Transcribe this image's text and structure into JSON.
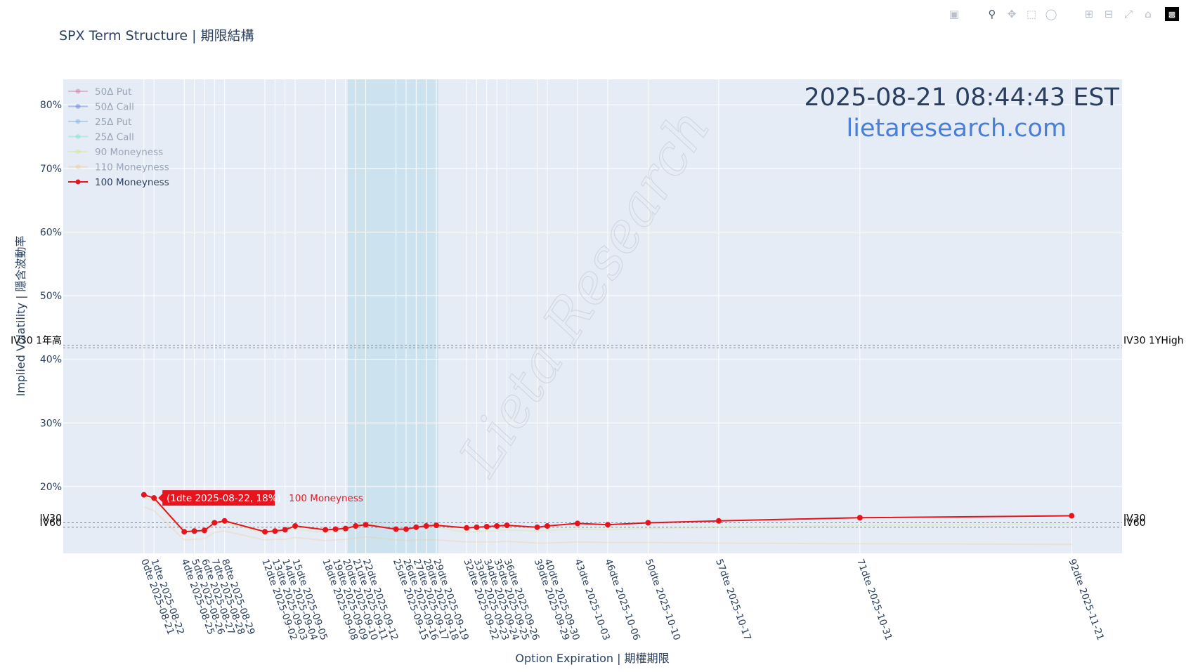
{
  "title": "SPX Term Structure | 期限結構",
  "timestamp": "2025-08-21 08:44:43 EST",
  "website": "lietaresearch.com",
  "watermark": "Lieta Research",
  "toolbar": [
    "camera-icon",
    "zoom-icon",
    "pan-icon",
    "box-select-icon",
    "lasso-icon",
    "zoom-in-icon",
    "zoom-out-icon",
    "autoscale-icon",
    "home-icon",
    "plotly-logo-icon"
  ],
  "hover_label": "(1dte 2025-08-22, 18%)",
  "hover_series": "100 Moneyness",
  "colors": {
    "plot_bg": "#e5ecf6",
    "shade": "#add8e6",
    "main_line": "#e8141d",
    "title": "#2a3f5f",
    "site": "#4a7fd6"
  },
  "chart_data": {
    "type": "line",
    "title": "SPX Term Structure | 期限結構",
    "xlabel": "Option Expiration | 期權期限",
    "ylabel": "Implied Volatility | 隱含波動率",
    "ylim": [
      9.5,
      84
    ],
    "yticks": [
      20,
      30,
      40,
      50,
      60,
      70,
      80
    ],
    "ytick_labels": [
      "20%",
      "30%",
      "40%",
      "50%",
      "60%",
      "70%",
      "80%"
    ],
    "xlim": [
      -8,
      97
    ],
    "dte": [
      0,
      1,
      4,
      5,
      6,
      7,
      8,
      12,
      13,
      14,
      15,
      18,
      19,
      20,
      21,
      22,
      25,
      26,
      27,
      28,
      29,
      32,
      33,
      34,
      35,
      36,
      39,
      40,
      43,
      46,
      50,
      57,
      71,
      92
    ],
    "x_labels": [
      "0dte 2025-08-21",
      "1dte 2025-08-22",
      "4dte 2025-08-25",
      "5dte 2025-08-26",
      "6dte 2025-08-27",
      "7dte 2025-08-28",
      "8dte 2025-08-29",
      "12dte 2025-09-02",
      "13dte 2025-09-03",
      "14dte 2025-09-04",
      "15dte 2025-09-05",
      "18dte 2025-09-08",
      "19dte 2025-09-09",
      "20dte 2025-09-10",
      "21dte 2025-09-11",
      "22dte 2025-09-12",
      "25dte 2025-09-15",
      "26dte 2025-09-16",
      "27dte 2025-09-17",
      "28dte 2025-09-18",
      "29dte 2025-09-19",
      "32dte 2025-09-22",
      "33dte 2025-09-23",
      "34dte 2025-09-24",
      "35dte 2025-09-25",
      "36dte 2025-09-26",
      "39dte 2025-09-29",
      "40dte 2025-09-30",
      "43dte 2025-10-03",
      "46dte 2025-10-06",
      "50dte 2025-10-10",
      "57dte 2025-10-17",
      "71dte 2025-10-31",
      "92dte 2025-11-21"
    ],
    "shaded_region": [
      20.2,
      29.2
    ],
    "series": [
      {
        "name": "50Δ Put",
        "color": "#c96a94",
        "marker": "star",
        "visible": false,
        "values": []
      },
      {
        "name": "50Δ Call",
        "color": "#5a6fcf",
        "marker": "triangle",
        "visible": false,
        "values": []
      },
      {
        "name": "25Δ Put",
        "color": "#6fa8e6",
        "marker": "x",
        "visible": false,
        "values": []
      },
      {
        "name": "25Δ Call",
        "color": "#6fe3c2",
        "marker": "cross",
        "visible": false,
        "values": []
      },
      {
        "name": "90 Moneyness",
        "color": "#cfe87a",
        "marker": "diamond",
        "visible": false,
        "values": [
          18.2,
          17.8,
          12.8,
          12.9,
          13.0,
          14.1,
          14.3,
          12.7,
          12.8,
          12.9,
          13.3,
          12.8,
          12.9,
          13.0,
          14.0,
          14.4,
          13.2,
          13.2,
          13.6,
          13.6,
          13.6,
          12.8,
          12.9,
          13.0,
          13.0,
          13.2,
          13.0,
          13.1,
          13.3,
          13.2,
          13.4,
          13.6,
          13.9,
          14.1
        ]
      },
      {
        "name": "110 Moneyness",
        "color": "#f5c78a",
        "marker": "square",
        "visible": false,
        "values": [
          16.8,
          16.2,
          11.6,
          11.7,
          11.8,
          12.8,
          13.0,
          11.6,
          11.7,
          11.7,
          12.0,
          11.5,
          11.6,
          11.7,
          11.9,
          12.1,
          11.6,
          11.5,
          11.6,
          11.6,
          11.6,
          11.3,
          11.3,
          11.3,
          11.3,
          11.4,
          11.1,
          11.1,
          11.3,
          11.2,
          11.2,
          11.1,
          11.0,
          10.9
        ]
      },
      {
        "name": "100 Moneyness",
        "color": "#e8141d",
        "marker": "circle",
        "visible": true,
        "values": [
          18.7,
          18.2,
          12.9,
          13.0,
          13.1,
          14.3,
          14.6,
          12.9,
          13.0,
          13.2,
          13.8,
          13.2,
          13.3,
          13.4,
          13.8,
          14.0,
          13.3,
          13.3,
          13.6,
          13.8,
          13.9,
          13.5,
          13.6,
          13.7,
          13.8,
          13.9,
          13.6,
          13.8,
          14.2,
          14.0,
          14.3,
          14.6,
          15.1,
          15.4
        ]
      }
    ],
    "hlines": [
      {
        "y": 42.2,
        "label_left": "IV30 1年高",
        "label_right": "IV30 1YHigh"
      },
      {
        "y": 41.8,
        "label_left": "",
        "label_right": ""
      },
      {
        "y": 13.6,
        "label_left": "IV60",
        "label_right": "IV60"
      },
      {
        "y": 14.3,
        "label_left": "IV30",
        "label_right": "IV30"
      }
    ],
    "legend_position": "top-left"
  }
}
